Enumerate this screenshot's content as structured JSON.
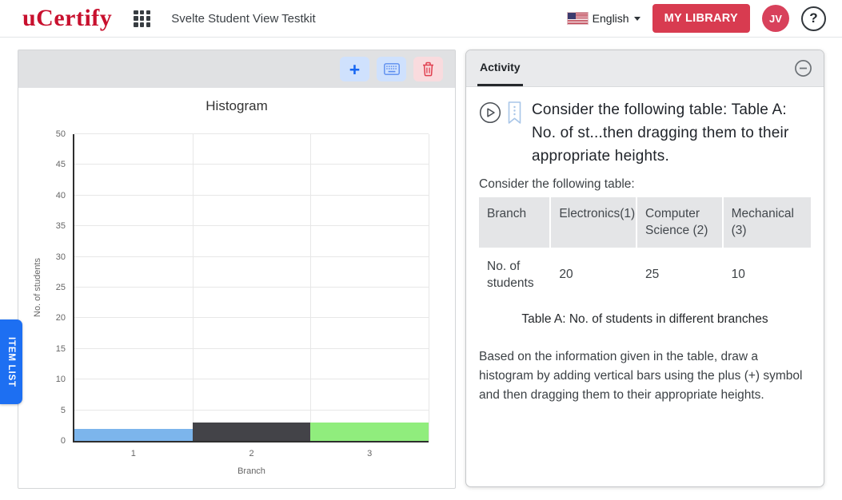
{
  "header": {
    "logo_text": "uCertify",
    "app_title": "Svelte Student View Testkit",
    "language_label": "English",
    "my_library_label": "MY LIBRARY",
    "avatar_initials": "JV",
    "help_label": "?"
  },
  "icons": {
    "app_grid": "3x3-grid",
    "language_flag": "us-flag",
    "add": "+",
    "keyboard": "keyboard",
    "delete": "trash",
    "collapse": "minus-circle",
    "play": "play-circle",
    "bookmark": "bookmark-ribbon"
  },
  "item_list_tab_label": "ITEM LIST",
  "chart_data": {
    "type": "bar",
    "title": "Histogram",
    "xlabel": "Branch",
    "ylabel": "No. of students",
    "categories": [
      "1",
      "2",
      "3"
    ],
    "values": [
      2,
      3,
      3
    ],
    "bar_colors": [
      "#7cb5ec",
      "#434348",
      "#90ed7d"
    ],
    "ylim": [
      0,
      50
    ],
    "ytick_step": 5,
    "grid": true,
    "legend": false
  },
  "activity_panel": {
    "tab_label": "Activity",
    "question_title": "Consider the following table: Table A: No. of st...then dragging them to their appropriate heights.",
    "intro_text": "Consider the following table:",
    "table": {
      "headers": [
        "Branch",
        "Electronics(1)",
        "Computer Science (2)",
        "Mechanical (3)"
      ],
      "rows": [
        [
          "No. of students",
          "20",
          "25",
          "10"
        ]
      ],
      "caption": "Table A: No. of students in different branches"
    },
    "instruction_text": "Based on the information given in the table, draw a histogram by adding vertical bars using the plus (+) symbol and then dragging them to their appropriate heights."
  }
}
